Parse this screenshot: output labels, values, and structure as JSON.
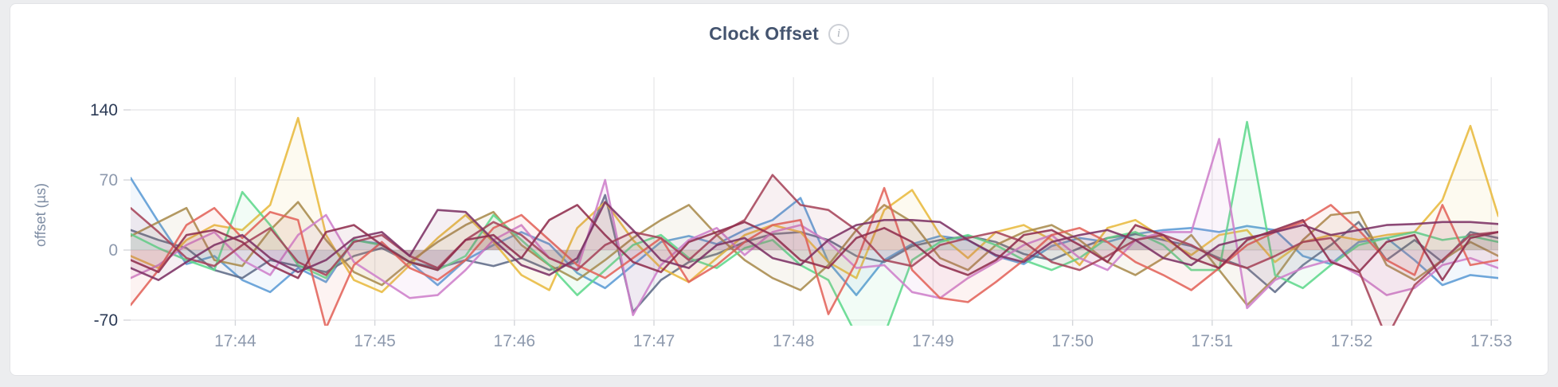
{
  "page": {
    "background": "#ecedef"
  },
  "card": {
    "title": "Clock Offset",
    "info_icon_glyph": "i",
    "background": "#ffffff",
    "border_color": "#e2e3e6"
  },
  "colors": {
    "title": "#44546f",
    "axis_label": "#8d99ad",
    "axis_label_strong": "#2b3a55",
    "axis_title": "#7d8ca3",
    "grid": "#e9e9eb",
    "tick_mark": "#d4d6da"
  },
  "chart_data": {
    "type": "line",
    "title": "Clock Offset",
    "xlabel": "",
    "ylabel": "offset (µs)",
    "ylim": [
      -70,
      140
    ],
    "grid": true,
    "legend": "none",
    "y_ticks": [
      {
        "value": 140,
        "label": "140",
        "strong": true
      },
      {
        "value": 70,
        "label": "70",
        "strong": false
      },
      {
        "value": 0,
        "label": "0",
        "strong": false
      },
      {
        "value": -70,
        "label": "-70",
        "strong": true
      }
    ],
    "x_domain_minutes": [
      43.25,
      53.05
    ],
    "x_ticks": [
      {
        "minute": 44,
        "label": "17:44"
      },
      {
        "minute": 45,
        "label": "17:45"
      },
      {
        "minute": 46,
        "label": "17:46"
      },
      {
        "minute": 47,
        "label": "17:47"
      },
      {
        "minute": 48,
        "label": "17:48"
      },
      {
        "minute": 49,
        "label": "17:49"
      },
      {
        "minute": 50,
        "label": "17:50"
      },
      {
        "minute": 51,
        "label": "17:51"
      },
      {
        "minute": 52,
        "label": "17:52"
      },
      {
        "minute": 53,
        "label": "17:53"
      }
    ],
    "x_start_minute": 43.25,
    "x_step_minute": 0.2,
    "y_unit": "µs",
    "series": [
      {
        "name": "series-blue",
        "color": "#5B9BD5",
        "values": [
          72,
          28,
          -14,
          -6,
          -30,
          -42,
          -18,
          -32,
          10,
          6,
          -12,
          -35,
          -10,
          5,
          18,
          6,
          -23,
          -38,
          -15,
          8,
          14,
          6,
          20,
          30,
          52,
          -12,
          -45,
          -10,
          6,
          14,
          10,
          -6,
          -14,
          4,
          12,
          8,
          16,
          20,
          22,
          18,
          24,
          20,
          -6,
          -14,
          8,
          12,
          -10,
          -35,
          -25,
          -28
        ]
      },
      {
        "name": "series-slate",
        "color": "#5E6B87",
        "values": [
          20,
          10,
          2,
          -20,
          -28,
          -10,
          -16,
          -22,
          -6,
          2,
          -12,
          -18,
          -10,
          -16,
          -8,
          -20,
          -12,
          55,
          -62,
          -30,
          -12,
          -4,
          8,
          16,
          18,
          10,
          -6,
          -12,
          4,
          10,
          14,
          8,
          -4,
          -10,
          2,
          12,
          16,
          10,
          4,
          -8,
          -18,
          -42,
          -15,
          5,
          28,
          -10,
          10,
          -12,
          18,
          12
        ]
      },
      {
        "name": "series-gold",
        "color": "#E8B93E",
        "values": [
          -6,
          -18,
          10,
          25,
          20,
          45,
          132,
          15,
          -30,
          -42,
          -15,
          12,
          35,
          8,
          -25,
          -40,
          22,
          48,
          10,
          -18,
          -32,
          -8,
          15,
          25,
          18,
          -12,
          -28,
          40,
          60,
          15,
          -8,
          18,
          25,
          10,
          -15,
          22,
          30,
          12,
          -5,
          15,
          20,
          -12,
          8,
          15,
          10,
          15,
          18,
          50,
          124,
          34
        ]
      },
      {
        "name": "series-bronze",
        "color": "#A98B4C",
        "values": [
          14,
          28,
          42,
          -10,
          -16,
          20,
          48,
          10,
          -22,
          -35,
          -12,
          8,
          25,
          38,
          5,
          -15,
          -30,
          -10,
          12,
          30,
          45,
          15,
          -10,
          -28,
          -40,
          -15,
          20,
          45,
          28,
          -8,
          -20,
          5,
          18,
          25,
          10,
          -12,
          -25,
          -8,
          15,
          -20,
          -55,
          -28,
          10,
          35,
          38,
          -15,
          -30,
          -10,
          8,
          -6
        ]
      },
      {
        "name": "series-green",
        "color": "#5FD88C",
        "values": [
          16,
          2,
          -10,
          -20,
          58,
          25,
          -15,
          -28,
          10,
          5,
          -12,
          -20,
          -6,
          35,
          10,
          -15,
          -45,
          -20,
          5,
          15,
          -8,
          -18,
          2,
          10,
          -15,
          -30,
          -85,
          -85,
          -10,
          8,
          15,
          5,
          -10,
          -20,
          -8,
          12,
          18,
          5,
          -20,
          -20,
          128,
          -25,
          -38,
          -15,
          5,
          12,
          18,
          10,
          14,
          8
        ]
      },
      {
        "name": "series-orchid",
        "color": "#CE7FCB",
        "values": [
          -28,
          -15,
          5,
          18,
          -10,
          -25,
          15,
          35,
          -12,
          -30,
          -48,
          -45,
          -20,
          10,
          25,
          -8,
          -20,
          70,
          -65,
          -15,
          10,
          22,
          -5,
          18,
          25,
          8,
          -18,
          -15,
          -42,
          -48,
          -28,
          -12,
          5,
          15,
          -8,
          -20,
          10,
          18,
          18,
          111,
          -58,
          -30,
          -18,
          -10,
          -25,
          -45,
          -38,
          -15,
          -8,
          -18
        ]
      },
      {
        "name": "series-salmon",
        "color": "#E2635A",
        "values": [
          -55,
          -20,
          25,
          42,
          12,
          38,
          30,
          -78,
          -15,
          8,
          -18,
          -30,
          -10,
          22,
          35,
          10,
          -15,
          -28,
          -8,
          12,
          -32,
          -15,
          8,
          25,
          30,
          -64,
          -12,
          62,
          -20,
          -48,
          -52,
          -32,
          -10,
          15,
          22,
          8,
          -12,
          -25,
          -40,
          -18,
          5,
          18,
          28,
          45,
          20,
          -10,
          -25,
          45,
          -15,
          -10
        ]
      },
      {
        "name": "series-wine",
        "color": "#A6445A",
        "values": [
          42,
          18,
          -8,
          -16,
          5,
          22,
          -12,
          -25,
          8,
          15,
          -6,
          -18,
          10,
          28,
          15,
          -8,
          -20,
          5,
          18,
          12,
          -10,
          15,
          30,
          75,
          45,
          40,
          20,
          -10,
          -16,
          5,
          12,
          18,
          8,
          -12,
          -20,
          -6,
          10,
          15,
          5,
          -10,
          -18,
          -6,
          8,
          12,
          -20,
          -88,
          -35,
          -10,
          15,
          18
        ]
      },
      {
        "name": "series-plum",
        "color": "#7C3164",
        "values": [
          -18,
          -30,
          -12,
          5,
          15,
          -8,
          -22,
          -10,
          12,
          18,
          -6,
          40,
          38,
          10,
          -15,
          -25,
          -8,
          48,
          20,
          -10,
          -18,
          5,
          12,
          -8,
          -15,
          10,
          25,
          30,
          30,
          28,
          10,
          -5,
          -12,
          8,
          15,
          20,
          10,
          -8,
          -15,
          5,
          12,
          18,
          25,
          15,
          20,
          25,
          26,
          28,
          28,
          26
        ]
      },
      {
        "name": "series-maroon",
        "color": "#8F2E4D",
        "values": [
          -10,
          -22,
          15,
          20,
          8,
          -15,
          -28,
          18,
          25,
          5,
          -12,
          -20,
          10,
          15,
          -8,
          30,
          45,
          15,
          -12,
          -22,
          8,
          18,
          28,
          15,
          -10,
          -18,
          12,
          22,
          8,
          -15,
          -25,
          -10,
          15,
          20,
          5,
          -12,
          25,
          15,
          -8,
          -18,
          10,
          20,
          30,
          -12,
          -22,
          8,
          15,
          -30,
          12,
          18
        ]
      }
    ]
  }
}
